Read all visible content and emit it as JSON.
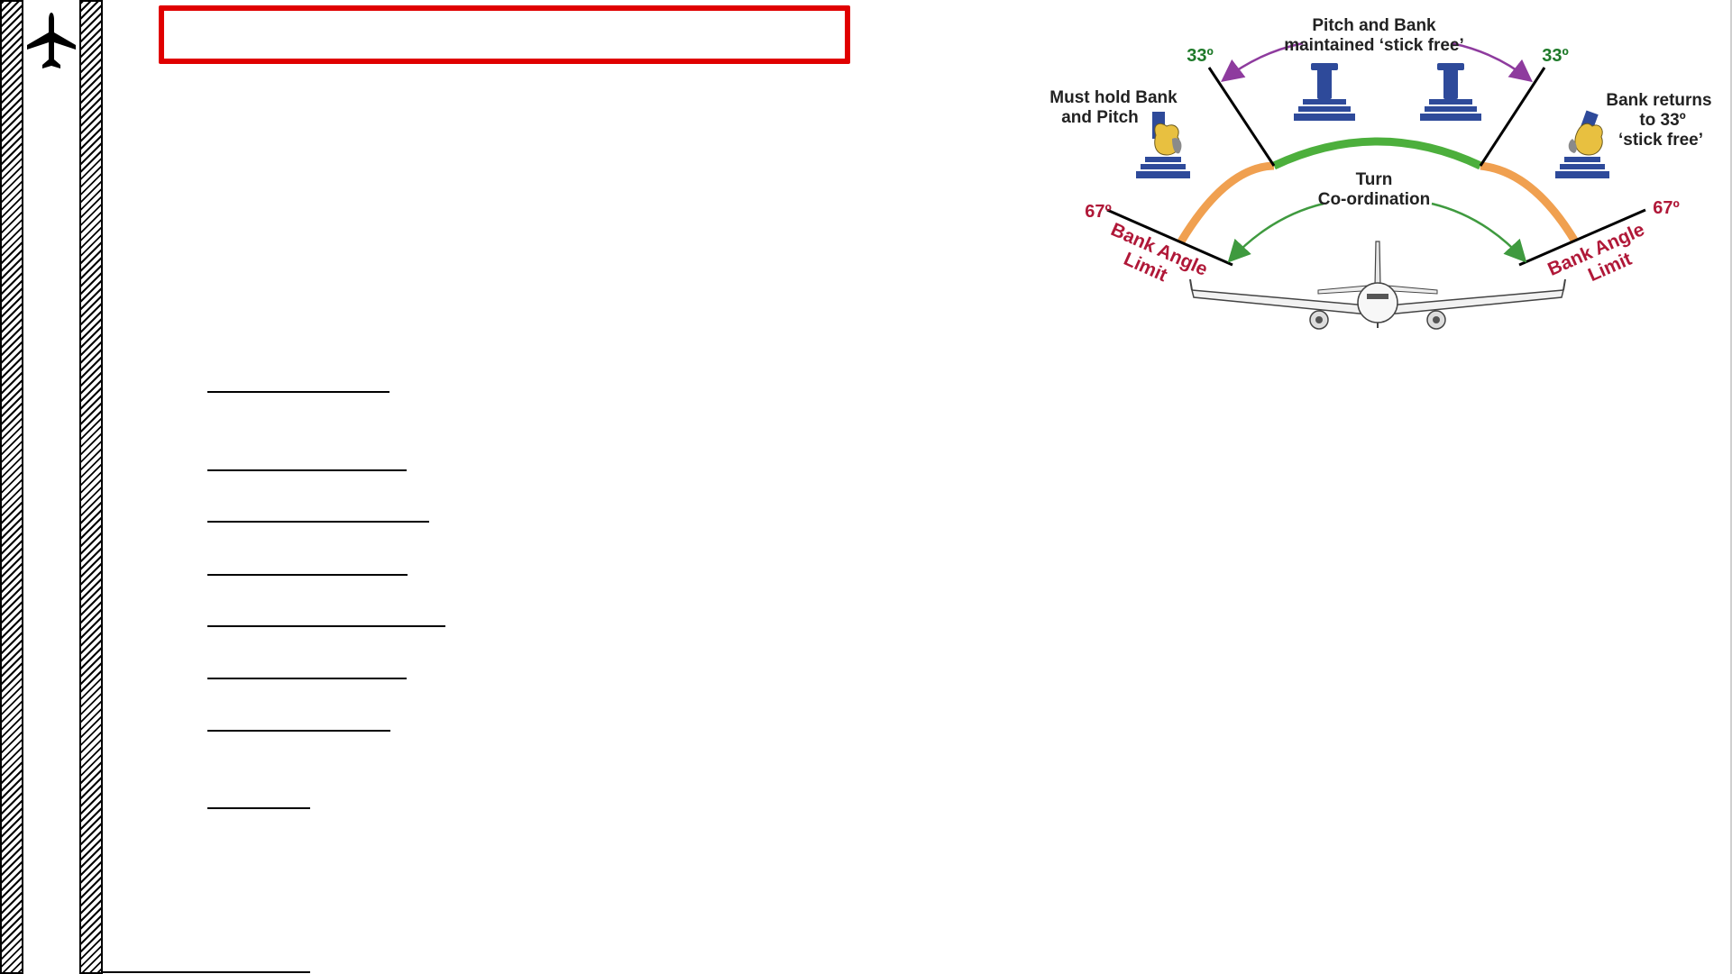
{
  "slide": {
    "title": ""
  },
  "sidebar": {
    "icon": "airplane-icon"
  },
  "colors": {
    "title_border": "#e00000",
    "normal_arc": "#4caf3c",
    "protection_arc": "#f0a050",
    "angle_label": "#1f7a2a",
    "limit_label": "#b01838",
    "pitch_arrow": "#8e3b9e",
    "coordination_arrow": "#3f9a3f",
    "sidestick_base": "#2e4a9a",
    "hand": "#e8c040"
  },
  "diagram": {
    "label_top": [
      "Pitch and Bank",
      "maintained ‘stick free’"
    ],
    "label_left": [
      "Must hold Bank",
      "and Pitch"
    ],
    "label_right": [
      "Bank returns",
      "to 33º",
      "‘stick free’"
    ],
    "label_center": [
      "Turn",
      "Co-ordination"
    ],
    "angle_left_inner": "33º",
    "angle_right_inner": "33º",
    "angle_left_outer": "67º",
    "angle_right_outer": "67º",
    "limit_left": [
      "Bank Angle",
      "Limit"
    ],
    "limit_right": [
      "Bank Angle",
      "Limit"
    ]
  }
}
